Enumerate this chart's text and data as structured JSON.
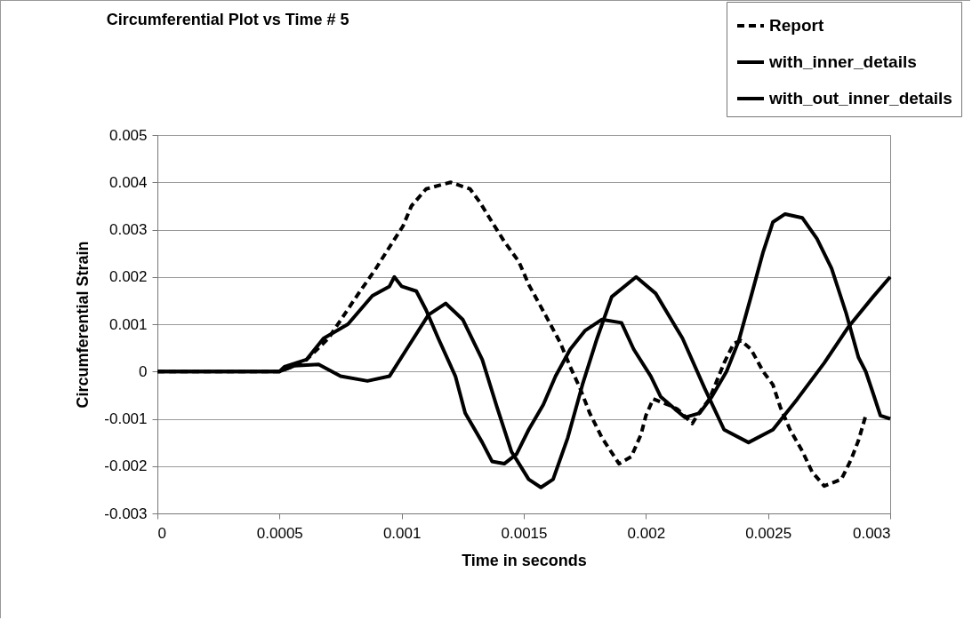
{
  "chart_data": {
    "type": "line",
    "title": "Circumferential Plot vs Time # 5",
    "xlabel": "Time in seconds",
    "ylabel": "Circumferential Strain",
    "xlim": [
      0,
      0.003
    ],
    "ylim": [
      -0.003,
      0.005
    ],
    "xticks": [
      0,
      0.0005,
      0.001,
      0.0015,
      0.002,
      0.0025,
      0.003
    ],
    "yticks": [
      -0.003,
      -0.002,
      -0.001,
      0,
      0.001,
      0.002,
      0.003,
      0.004,
      0.005
    ],
    "grid": "y",
    "legend": "top right",
    "series": [
      {
        "name": "Report",
        "color": "#000000",
        "line_style": "dashed",
        "x": [
          0,
          0.0003,
          0.0005,
          0.0006,
          0.0007,
          0.000826,
          0.00089,
          0.00095,
          0.001005,
          0.00104,
          0.0011,
          0.0012,
          0.00128,
          0.00132,
          0.00137,
          0.00142,
          0.00148,
          0.00152,
          0.00159,
          0.00165,
          0.00169,
          0.00173,
          0.00177,
          0.00182,
          0.00189,
          0.00194,
          0.00198,
          0.002,
          0.00203,
          0.00209,
          0.00213,
          0.00219,
          0.00221,
          0.00226,
          0.00232,
          0.00236,
          0.00239,
          0.00243,
          0.00248,
          0.00252,
          0.00255,
          0.00259,
          0.00264,
          0.00268,
          0.00273,
          0.0028,
          0.00284,
          0.00287,
          0.0029
        ],
        "values": [
          0,
          0,
          0,
          0.0002,
          0.0007,
          0.00167,
          0.00214,
          0.00263,
          0.00307,
          0.0035,
          0.00386,
          0.004,
          0.00386,
          0.00358,
          0.00316,
          0.00275,
          0.00232,
          0.00184,
          0.00118,
          0.0006,
          0.0001,
          -0.00035,
          -0.00088,
          -0.0014,
          -0.00195,
          -0.0018,
          -0.00133,
          -0.00093,
          -0.00058,
          -0.0007,
          -0.0008,
          -0.0011,
          -0.00093,
          -0.00058,
          0.00018,
          0.0006,
          0.00065,
          0.00047,
          0,
          -0.00028,
          -0.00075,
          -0.00123,
          -0.00168,
          -0.00212,
          -0.00242,
          -0.00228,
          -0.00186,
          -0.00146,
          -0.00093
        ]
      },
      {
        "name": "with_inner_details",
        "color": "#000000",
        "line_style": "solid",
        "x": [
          0,
          0.0003,
          0.0005,
          0.00052,
          0.00061,
          0.00068,
          0.00078,
          0.00088,
          0.00095,
          0.00097,
          0.001,
          0.00106,
          0.0011,
          0.00115,
          0.00122,
          0.00126,
          0.00133,
          0.00137,
          0.00142,
          0.00147,
          0.00152,
          0.00158,
          0.00163,
          0.00169,
          0.00175,
          0.00182,
          0.0019,
          0.00195,
          0.00202,
          0.00206,
          0.00212,
          0.00216,
          0.00222,
          0.00227,
          0.00233,
          0.00238,
          0.00243,
          0.00248,
          0.00252,
          0.00257,
          0.00264,
          0.0027,
          0.00276,
          0.00282,
          0.00287,
          0.0029,
          0.00293,
          0.00296,
          0.003
        ],
        "values": [
          0,
          0,
          0,
          0.0001,
          0.00025,
          0.0007,
          0.001,
          0.0016,
          0.0018,
          0.002,
          0.0018,
          0.0017,
          0.0013,
          0.0007,
          -0.0001,
          -0.00088,
          -0.0015,
          -0.0019,
          -0.00195,
          -0.00175,
          -0.00123,
          -0.0007,
          -0.0001,
          0.00047,
          0.00086,
          0.0011,
          0.00103,
          0.00047,
          -0.0001,
          -0.00053,
          -0.0008,
          -0.00097,
          -0.00088,
          -0.00053,
          0,
          0.00065,
          0.00158,
          0.00253,
          0.00316,
          0.00333,
          0.00325,
          0.00281,
          0.00218,
          0.00123,
          0.0003,
          0,
          -0.00046,
          -0.00093,
          -0.001
        ]
      },
      {
        "name": "with_out_inner_details",
        "color": "#000000",
        "line_style": "solid",
        "x": [
          0,
          0.0003,
          0.0005,
          0.00056,
          0.00066,
          0.00075,
          0.00086,
          0.00095,
          0.00102,
          0.00111,
          0.00118,
          0.00125,
          0.00133,
          0.00139,
          0.00145,
          0.00147,
          0.00152,
          0.00157,
          0.00162,
          0.00168,
          0.00174,
          0.0018,
          0.00186,
          0.00196,
          0.00204,
          0.00215,
          0.00224,
          0.00232,
          0.00242,
          0.00252,
          0.00262,
          0.00273,
          0.00283,
          0.00293,
          0.003
        ],
        "values": [
          0,
          0,
          0,
          0.00012,
          0.00015,
          -0.0001,
          -0.0002,
          -0.0001,
          0.00047,
          0.0012,
          0.00144,
          0.0011,
          0.00025,
          -0.00075,
          -0.0017,
          -0.00186,
          -0.00228,
          -0.00245,
          -0.00228,
          -0.0014,
          -0.00028,
          0.0007,
          0.00158,
          0.002,
          0.00165,
          0.0007,
          -0.00035,
          -0.00123,
          -0.0015,
          -0.00123,
          -0.00058,
          0.00018,
          0.00095,
          0.00158,
          0.002
        ]
      }
    ]
  }
}
